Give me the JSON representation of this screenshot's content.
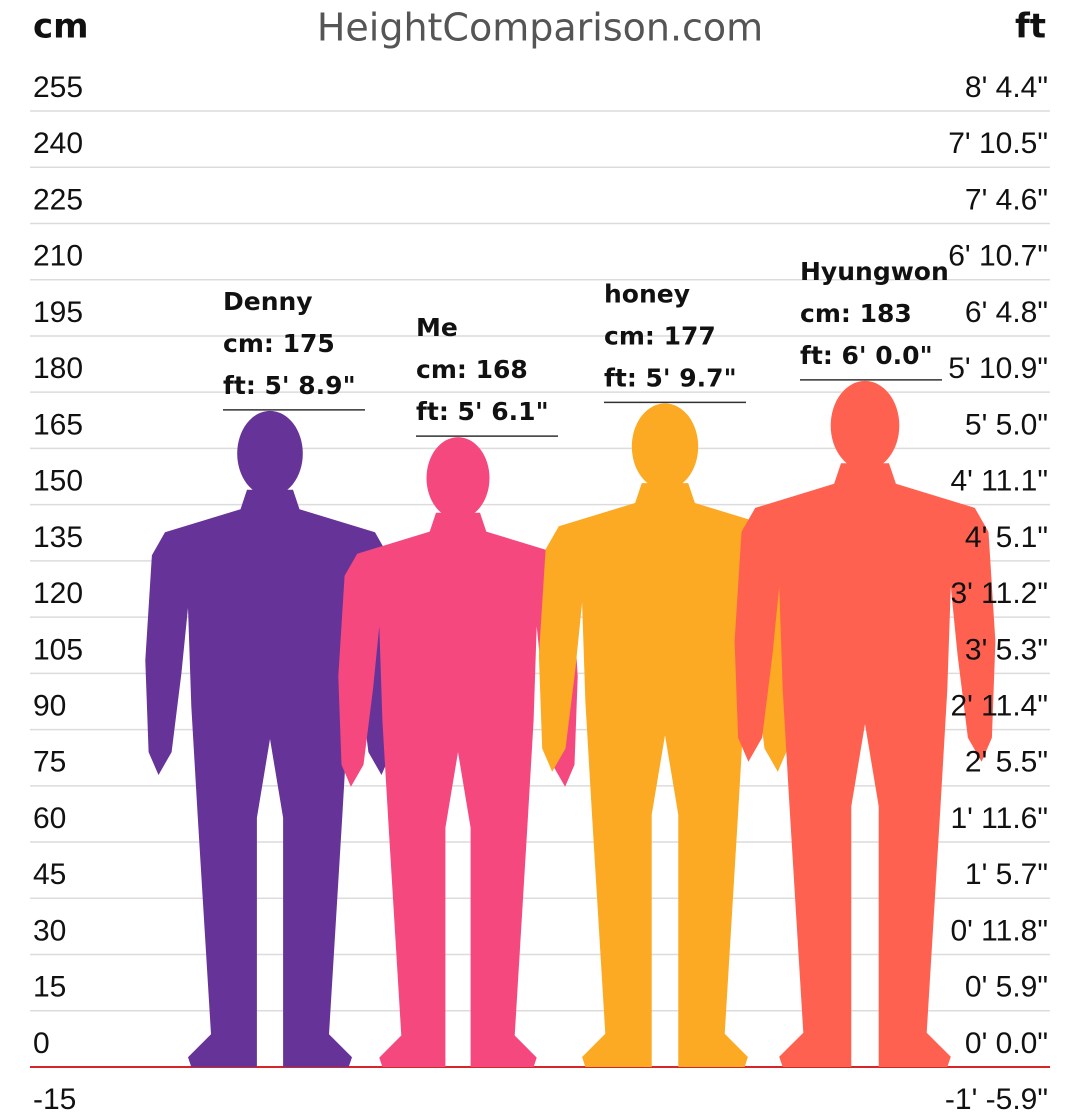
{
  "chart_data": {
    "type": "height-comparison",
    "title": "HeightComparison.com",
    "ylabel": "cm",
    "y2label": "ft",
    "ylim": [
      -15,
      255
    ],
    "yticks": [
      255,
      240,
      225,
      210,
      195,
      180,
      165,
      150,
      135,
      120,
      105,
      90,
      75,
      60,
      45,
      30,
      15,
      0,
      -15
    ],
    "y2lim": [
      -15,
      255
    ],
    "y2ticks": [
      {
        "value": 255,
        "label": "8' 4.4\""
      },
      {
        "value": 240,
        "label": "7' 10.5\""
      },
      {
        "value": 225,
        "label": "7' 4.6\""
      },
      {
        "value": 210,
        "label": "6' 10.7\""
      },
      {
        "value": 195,
        "label": "6' 4.8\""
      },
      {
        "value": 180,
        "label": "5' 10.9\""
      },
      {
        "value": 165,
        "label": "5' 5.0\""
      },
      {
        "value": 150,
        "label": "4' 11.1\""
      },
      {
        "value": 135,
        "label": "4' 5.1\""
      },
      {
        "value": 120,
        "label": "3' 11.2\""
      },
      {
        "value": 105,
        "label": "3' 5.3\""
      },
      {
        "value": 90,
        "label": "2' 11.4\""
      },
      {
        "value": 75,
        "label": "2' 5.5\""
      },
      {
        "value": 60,
        "label": "1' 11.6\""
      },
      {
        "value": 45,
        "label": "1' 5.7\""
      },
      {
        "value": 30,
        "label": "0' 11.8\""
      },
      {
        "value": 15,
        "label": "0' 5.9\""
      },
      {
        "value": 0,
        "label": "0' 0.0\""
      },
      {
        "value": -15,
        "label": "-1' -5.9\""
      }
    ],
    "grid": true,
    "baseline_color": "#d62728",
    "series": [
      {
        "name": "Denny",
        "color": "#663399",
        "values": [
          175
        ],
        "value_labels": [
          "cm: 175"
        ],
        "ft_labels": [
          "ft: 5' 8.9\""
        ]
      },
      {
        "name": "Me",
        "color": "#f5487f",
        "values": [
          168
        ],
        "value_labels": [
          "cm: 168"
        ],
        "ft_labels": [
          "ft: 5' 6.1\""
        ]
      },
      {
        "name": "honey",
        "color": "#fca923",
        "values": [
          177
        ],
        "value_labels": [
          "cm: 177"
        ],
        "ft_labels": [
          "ft: 5' 9.7\""
        ]
      },
      {
        "name": "Hyungwon",
        "color": "#ff6150",
        "values": [
          183
        ],
        "value_labels": [
          "cm: 183"
        ],
        "ft_labels": [
          "ft: 6' 0.0\""
        ]
      }
    ]
  }
}
